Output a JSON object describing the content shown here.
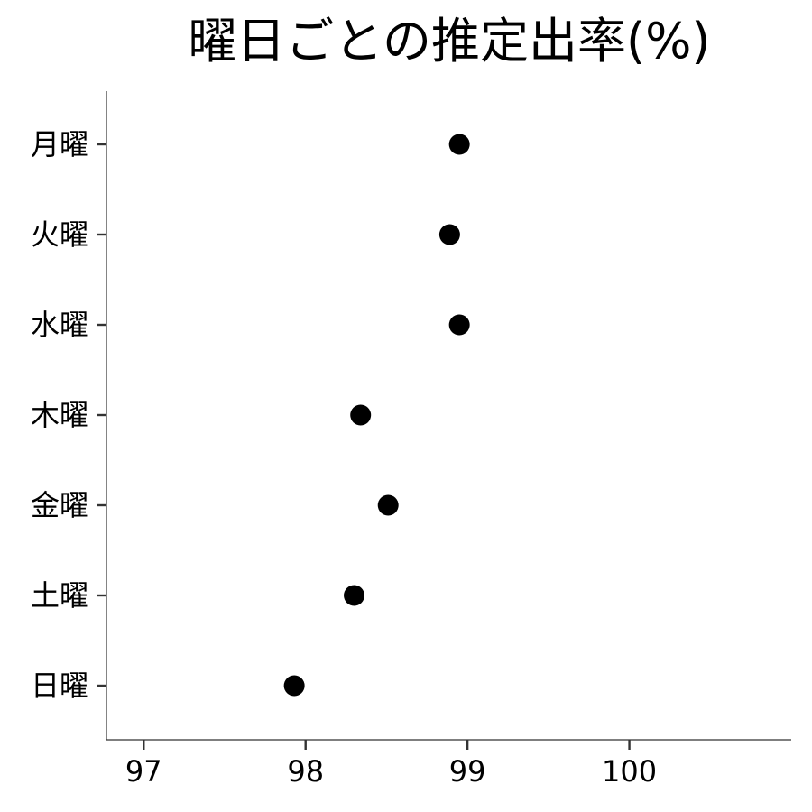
{
  "chart_data": {
    "type": "scatter",
    "title": "曜日ごとの推定出率(%)",
    "xlabel": "",
    "ylabel": "",
    "xlim": [
      96.77,
      101.0
    ],
    "xticks": [
      97,
      98,
      99,
      100
    ],
    "xtick_labels": [
      "97",
      "98",
      "99",
      "100"
    ],
    "categories": [
      "月曜",
      "火曜",
      "水曜",
      "木曜",
      "金曜",
      "土曜",
      "日曜"
    ],
    "values": [
      98.95,
      98.89,
      98.95,
      98.34,
      98.51,
      98.3,
      97.93
    ],
    "grid": false,
    "legend": "none",
    "point_color": "#000000",
    "axis_color": "#333333"
  }
}
